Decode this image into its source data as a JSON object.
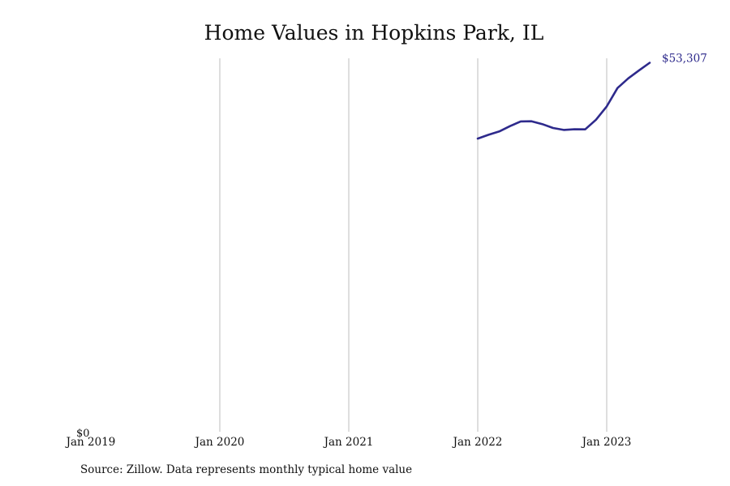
{
  "chart_data": {
    "type": "line",
    "title": "Home Values in Hopkins Park, IL",
    "xlabel": "",
    "ylabel": "",
    "x_ticks": [
      "Jan 2019",
      "Jan 2020",
      "Jan 2021",
      "Jan 2022",
      "Jan 2023"
    ],
    "y_ticks": [
      "$0"
    ],
    "ylim": [
      0,
      55000
    ],
    "grid": "vertical",
    "line_color": "#2e2a8c",
    "series": [
      {
        "name": "",
        "x": [
          "2022-01",
          "2022-02",
          "2022-03",
          "2022-04",
          "2022-05",
          "2022-06",
          "2022-07",
          "2022-08",
          "2022-09",
          "2022-10",
          "2022-11",
          "2022-12",
          "2023-01",
          "2023-02",
          "2023-03",
          "2023-04",
          "2023-05"
        ],
        "values": [
          42350,
          42900,
          43380,
          44150,
          44830,
          44850,
          44450,
          43880,
          43600,
          43700,
          43680,
          45080,
          47000,
          49650,
          51040,
          52200,
          53307
        ]
      }
    ],
    "end_label": "$53,307"
  },
  "footer": {
    "source": "Source: Zillow. Data represents monthly typical home value"
  }
}
